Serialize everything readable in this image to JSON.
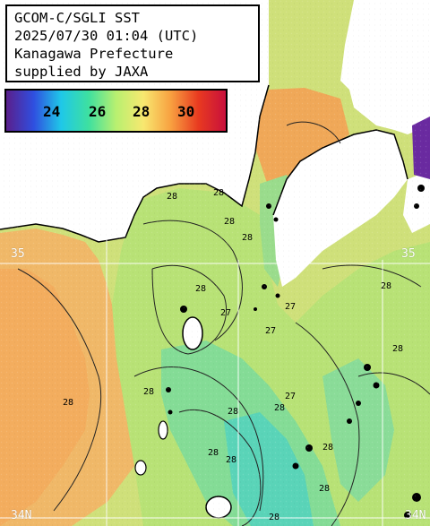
{
  "info": {
    "line1": "GCOM-C/SGLI SST",
    "line2": "2025/07/30 01:04 (UTC)",
    "line3": "Kanagawa Prefecture",
    "line4": "supplied by JAXA"
  },
  "legend": {
    "ticks": [
      "24",
      "26",
      "28",
      "30"
    ],
    "colors": [
      "#5a1f8c",
      "#2f4fe0",
      "#1fc8e8",
      "#3ee0a0",
      "#b8f070",
      "#f8e870",
      "#f8a040",
      "#e83a20",
      "#c8103c"
    ]
  },
  "grid_labels": {
    "lat35": "35",
    "lat34_left": "34N",
    "lat34_right": "34N",
    "lon_right": "35"
  },
  "contour_labels": [
    "28",
    "28",
    "28",
    "28",
    "28",
    "27",
    "27",
    "27",
    "28",
    "28",
    "28",
    "28",
    "27",
    "28",
    "28",
    "28",
    "28",
    "28",
    "28",
    "28"
  ],
  "colors": {
    "land": "#ffffff",
    "warm_sea": "#f0b060",
    "mid_sea": "#d8e070",
    "cool_sea": "#9ee070",
    "cold_sea": "#6ed8a0",
    "coldest_sea": "#4ad0c8",
    "hot_patch": "#7030a0",
    "black": "#000000"
  }
}
